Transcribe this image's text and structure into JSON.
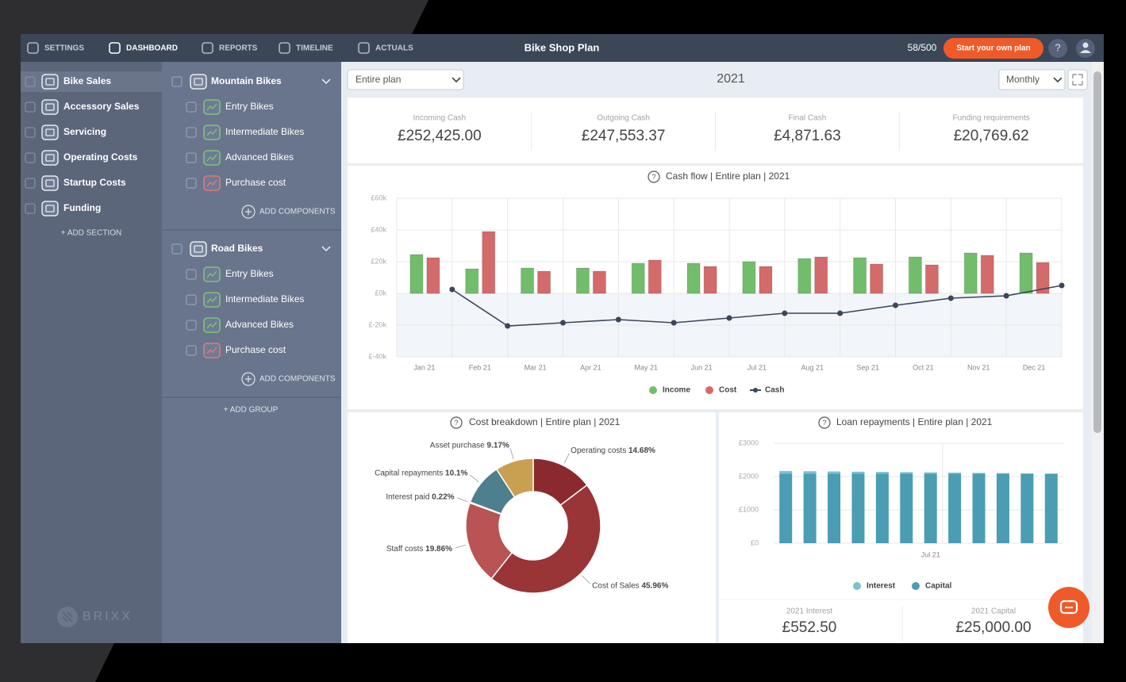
{
  "nav": {
    "items": [
      "SETTINGS",
      "DASHBOARD",
      "REPORTS",
      "TIMELINE",
      "ACTUALS"
    ],
    "title": "Bike Shop Plan",
    "usage": "58/500",
    "cta": "Start your own plan",
    "help": "?"
  },
  "sections": {
    "items": [
      "Bike Sales",
      "Accessory Sales",
      "Servicing",
      "Operating Costs",
      "Startup Costs",
      "Funding"
    ],
    "add": "+ ADD SECTION"
  },
  "groups": [
    {
      "name": "Mountain Bikes",
      "items": [
        "Entry Bikes",
        "Intermediate Bikes",
        "Advanced Bikes",
        "Purchase cost"
      ],
      "add": "ADD COMPONENTS"
    },
    {
      "name": "Road Bikes",
      "items": [
        "Entry Bikes",
        "Intermediate Bikes",
        "Advanced Bikes",
        "Purchase cost"
      ],
      "add": "ADD COMPONENTS"
    }
  ],
  "add_group": "+ ADD GROUP",
  "logo": "BRIXX",
  "toolbar": {
    "scope": "Entire plan",
    "year": "2021",
    "period": "Monthly"
  },
  "kpis": [
    {
      "label": "Incoming Cash",
      "value": "£252,425.00"
    },
    {
      "label": "Outgoing Cash",
      "value": "£247,553.37"
    },
    {
      "label": "Final Cash",
      "value": "£4,871.63"
    },
    {
      "label": "Funding requirements",
      "value": "£20,769.62"
    }
  ],
  "chart_data": [
    {
      "type": "bar",
      "title": "Cash flow | Entire plan | 2021",
      "categories": [
        "Jan 21",
        "Feb 21",
        "Mar 21",
        "Apr 21",
        "May 21",
        "Jun 21",
        "Jul 21",
        "Aug 21",
        "Sep 21",
        "Oct 21",
        "Nov 21",
        "Dec 21"
      ],
      "series": [
        {
          "name": "Income",
          "color": "#72bd6c",
          "values": [
            24500,
            15500,
            16000,
            16000,
            19000,
            19000,
            20000,
            22000,
            22500,
            23000,
            25500,
            25500
          ]
        },
        {
          "name": "Cost",
          "color": "#d36b6b",
          "values": [
            22500,
            39000,
            14000,
            14000,
            21000,
            17000,
            17000,
            23000,
            18500,
            18000,
            24000,
            19500
          ]
        },
        {
          "name": "Cash",
          "color": "#3b4658",
          "type": "line",
          "values": [
            2500,
            -20500,
            -18500,
            -16500,
            -18500,
            -15500,
            -12500,
            -12500,
            -7500,
            -3000,
            -1500,
            5000
          ]
        }
      ],
      "ylim": [
        -40000,
        60000
      ],
      "yticks": [
        {
          "value": 60000,
          "label": "£60k"
        },
        {
          "value": 40000,
          "label": "£40k"
        },
        {
          "value": 20000,
          "label": "£20k"
        },
        {
          "value": 0,
          "label": "£0k"
        },
        {
          "value": -20000,
          "label": "£-20k"
        },
        {
          "value": -40000,
          "label": "£-40k"
        }
      ],
      "grid": true
    },
    {
      "type": "donut",
      "title": "Cost breakdown | Entire plan | 2021",
      "labels": [
        "Operating costs",
        "Cost of Sales",
        "Staff costs",
        "Interest paid",
        "Capital repayments",
        "Asset purchase"
      ],
      "values": [
        14.68,
        45.96,
        19.86,
        0.22,
        10.1,
        9.17
      ],
      "value_labels": [
        "14.68%",
        "45.96%",
        "19.86%",
        "0.22%",
        "10.1%",
        "9.17%"
      ],
      "colors": [
        "#8a2a2e",
        "#993437",
        "#b95354",
        "#c26565",
        "#4e7f8d",
        "#c9a052"
      ]
    },
    {
      "type": "stacked_bar",
      "title": "Loan repayments | Entire plan | 2021",
      "categories": [
        null,
        null,
        null,
        null,
        null,
        null,
        "Jul 21",
        null,
        null,
        null,
        null,
        null
      ],
      "series": [
        {
          "name": "Interest",
          "color": "#7cc0d2",
          "values": [
            85,
            78,
            71,
            64,
            57,
            50,
            43,
            36,
            29,
            22,
            12,
            5.5
          ]
        },
        {
          "name": "Capital",
          "color": "#4a9db2",
          "values": [
            2083.33,
            2083.33,
            2083.33,
            2083.33,
            2083.33,
            2083.33,
            2083.33,
            2083.33,
            2083.33,
            2083.33,
            2083.33,
            2083.33
          ]
        }
      ],
      "ylim": [
        0,
        3000
      ],
      "yticks": [
        {
          "value": 3000,
          "label": "£3000"
        },
        {
          "value": 2000,
          "label": "£2000"
        },
        {
          "value": 1000,
          "label": "£1000"
        },
        {
          "value": 0,
          "label": "£0"
        }
      ],
      "grid": true
    }
  ],
  "loan_kpis": [
    {
      "label": "2021 Interest",
      "value": "£552.50"
    },
    {
      "label": "2021 Capital",
      "value": "£25,000.00"
    }
  ]
}
